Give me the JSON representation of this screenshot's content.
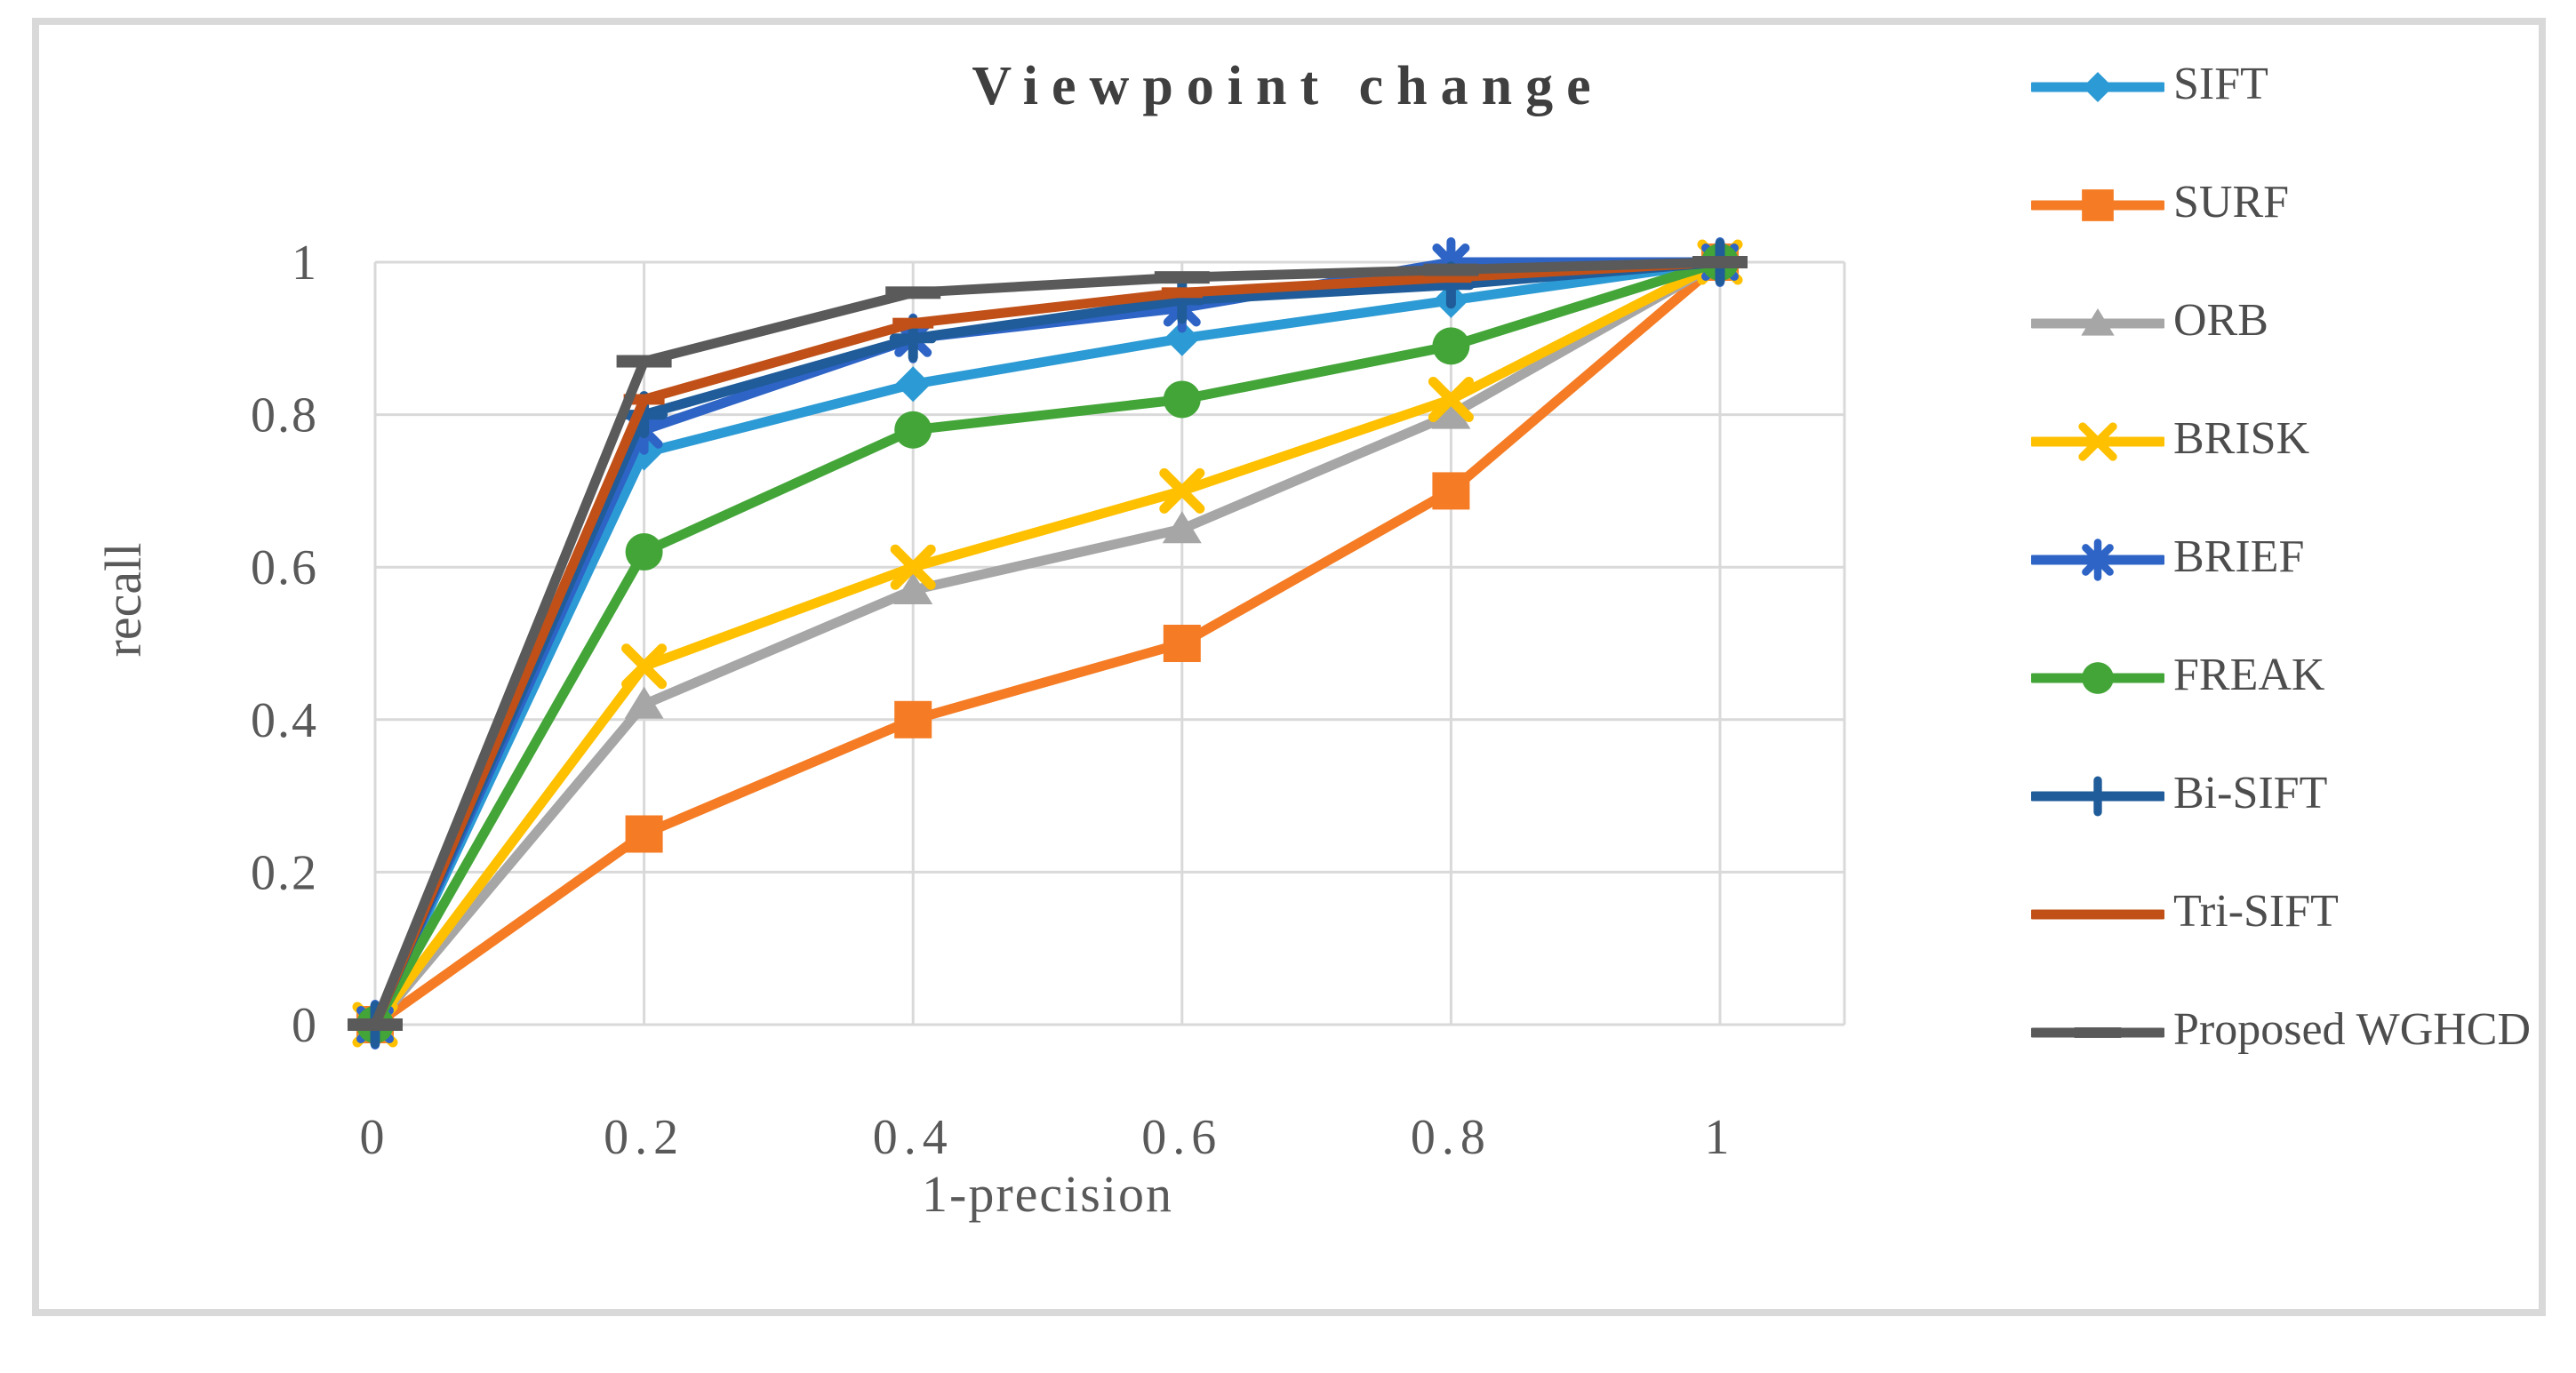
{
  "figure": {
    "background": "#ffffff",
    "border_color": "#d9d9d9",
    "gridline_color": "#d9d9d9",
    "text_color": "#595959"
  },
  "chart_data": {
    "type": "line",
    "title": "Viewpoint change",
    "xlabel": "1-precision",
    "ylabel": "recall",
    "xlim": [
      0,
      1.09
    ],
    "ylim": [
      0,
      1
    ],
    "grid": true,
    "legend_position": "right",
    "x_tick_labels": [
      "0",
      "0.2",
      "0.4",
      "0.6",
      "0.8",
      "1"
    ],
    "y_tick_labels": [
      "0",
      "0.2",
      "0.4",
      "0.6",
      "0.8",
      "1"
    ],
    "x_tick_values": [
      0,
      0.2,
      0.4,
      0.6,
      0.8,
      1
    ],
    "y_tick_values": [
      0,
      0.2,
      0.4,
      0.6,
      0.8,
      1
    ],
    "x": [
      0,
      0.2,
      0.4,
      0.6,
      0.8,
      1
    ],
    "series": [
      {
        "name": "SIFT",
        "color": "#2c9ad4",
        "marker": "diamond",
        "values": [
          0,
          0.75,
          0.84,
          0.9,
          0.95,
          1
        ]
      },
      {
        "name": "SURF",
        "color": "#f57c24",
        "marker": "square",
        "values": [
          0,
          0.25,
          0.4,
          0.5,
          0.7,
          1
        ]
      },
      {
        "name": "ORB",
        "color": "#a6a6a6",
        "marker": "triangle",
        "values": [
          0,
          0.42,
          0.57,
          0.65,
          0.8,
          1
        ]
      },
      {
        "name": "BRISK",
        "color": "#ffc000",
        "marker": "x",
        "values": [
          0,
          0.47,
          0.6,
          0.7,
          0.82,
          1
        ]
      },
      {
        "name": "BRIEF",
        "color": "#2e64c5",
        "marker": "asterisk",
        "values": [
          0,
          0.78,
          0.9,
          0.94,
          1.0,
          1
        ]
      },
      {
        "name": "FREAK",
        "color": "#43a538",
        "marker": "circle",
        "values": [
          0,
          0.62,
          0.78,
          0.82,
          0.89,
          1
        ]
      },
      {
        "name": "Bi-SIFT",
        "color": "#1f5c99",
        "marker": "plus",
        "values": [
          0,
          0.8,
          0.9,
          0.95,
          0.97,
          1
        ]
      },
      {
        "name": "Tri-SIFT",
        "color": "#c05018",
        "marker": "dash",
        "values": [
          0,
          0.82,
          0.92,
          0.96,
          0.98,
          1
        ]
      },
      {
        "name": "Proposed WGHCD",
        "color": "#5a5a5a",
        "marker": "bar",
        "values": [
          0,
          0.87,
          0.96,
          0.98,
          0.99,
          1
        ]
      }
    ]
  }
}
